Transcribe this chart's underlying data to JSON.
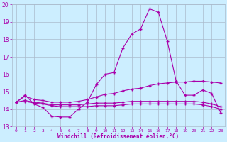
{
  "xlabel": "Windchill (Refroidissement éolien,°C)",
  "background_color": "#cceeff",
  "grid_color": "#aabbcc",
  "line_color": "#aa00aa",
  "xlim": [
    -0.5,
    23.5
  ],
  "ylim": [
    13,
    20
  ],
  "yticks": [
    13,
    14,
    15,
    16,
    17,
    18,
    19,
    20
  ],
  "xticks": [
    0,
    1,
    2,
    3,
    4,
    5,
    6,
    7,
    8,
    9,
    10,
    11,
    12,
    13,
    14,
    15,
    16,
    17,
    18,
    19,
    20,
    21,
    22,
    23
  ],
  "hours": [
    0,
    1,
    2,
    3,
    4,
    5,
    6,
    7,
    8,
    9,
    10,
    11,
    12,
    13,
    14,
    15,
    16,
    17,
    18,
    19,
    20,
    21,
    22,
    23
  ],
  "temp": [
    14.4,
    14.8,
    14.3,
    14.1,
    13.6,
    13.55,
    13.55,
    14.0,
    14.4,
    15.4,
    16.0,
    16.1,
    17.5,
    18.3,
    18.6,
    19.75,
    19.55,
    17.9,
    15.6,
    14.8,
    14.8,
    15.1,
    14.9,
    13.8
  ],
  "line1": [
    14.4,
    14.75,
    14.55,
    14.5,
    14.4,
    14.4,
    14.4,
    14.45,
    14.55,
    14.7,
    14.85,
    14.9,
    15.05,
    15.15,
    15.2,
    15.35,
    15.45,
    15.5,
    15.55,
    15.55,
    15.6,
    15.6,
    15.55,
    15.5
  ],
  "line2": [
    14.4,
    14.45,
    14.35,
    14.3,
    14.2,
    14.15,
    14.15,
    14.15,
    14.15,
    14.2,
    14.2,
    14.2,
    14.25,
    14.3,
    14.3,
    14.3,
    14.3,
    14.3,
    14.3,
    14.3,
    14.3,
    14.25,
    14.15,
    14.0
  ],
  "line3": [
    14.4,
    14.5,
    14.4,
    14.35,
    14.25,
    14.25,
    14.25,
    14.25,
    14.3,
    14.35,
    14.35,
    14.35,
    14.4,
    14.45,
    14.45,
    14.45,
    14.45,
    14.45,
    14.45,
    14.45,
    14.45,
    14.4,
    14.3,
    14.15
  ]
}
